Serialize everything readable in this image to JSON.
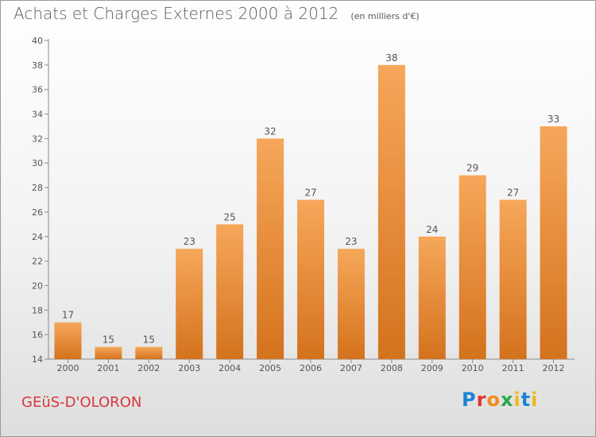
{
  "title": "Achats et Charges Externes 2000 à 2012",
  "subtitle": "(en milliers d'€)",
  "place": "GEüS-D'OLORON",
  "logo": {
    "p": "P",
    "r": "r",
    "o": "o",
    "x": "x",
    "i1": "i",
    "t": "t",
    "i2": "i"
  },
  "colors": {
    "bar_top": "#f6a75a",
    "bar_bottom": "#d4721d",
    "place": "#d8383a"
  },
  "chart_data": {
    "type": "bar",
    "categories": [
      "2000",
      "2001",
      "2002",
      "2003",
      "2004",
      "2005",
      "2006",
      "2007",
      "2008",
      "2009",
      "2010",
      "2011",
      "2012"
    ],
    "values": [
      17,
      15,
      15,
      23,
      25,
      32,
      27,
      23,
      38,
      24,
      29,
      27,
      33
    ],
    "ylim": [
      14,
      40
    ],
    "yticks": [
      14,
      16,
      18,
      20,
      22,
      24,
      26,
      28,
      30,
      32,
      34,
      36,
      38,
      40
    ],
    "grid": false
  }
}
